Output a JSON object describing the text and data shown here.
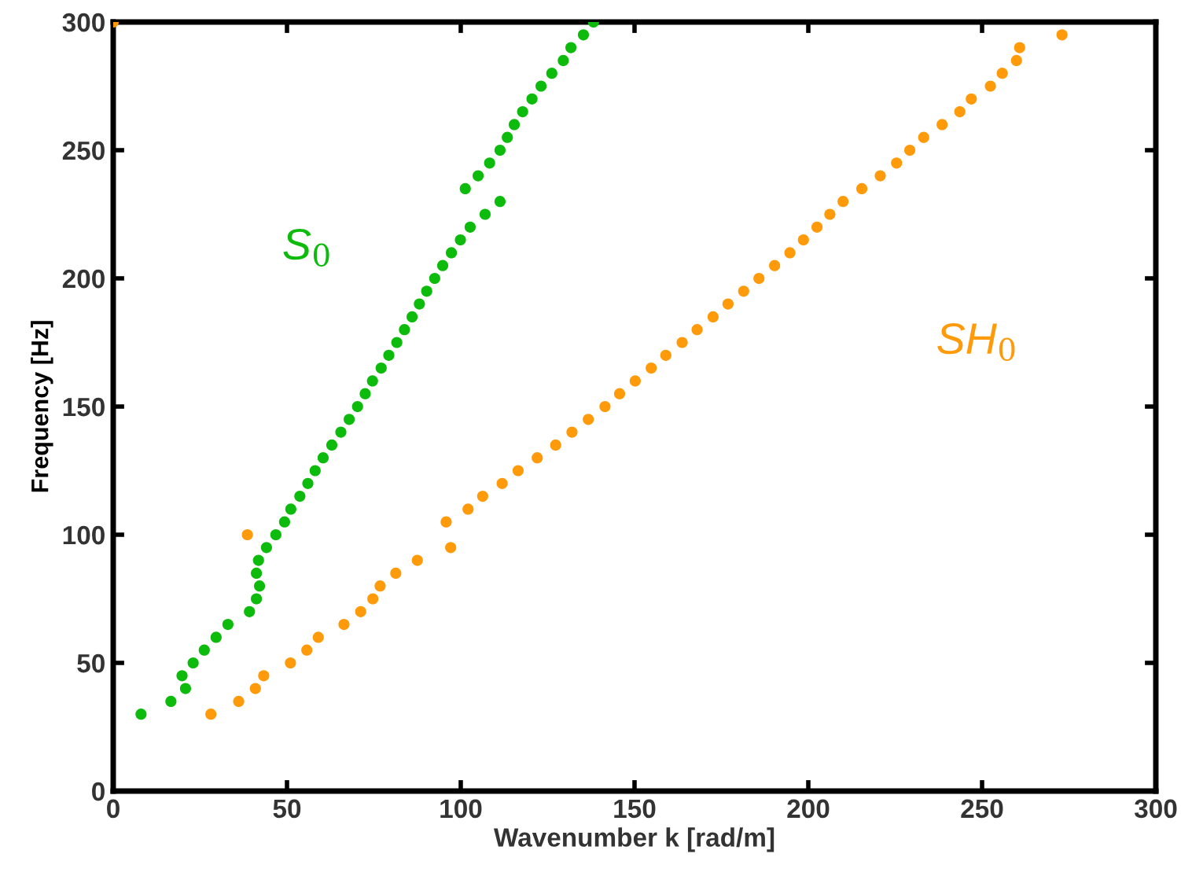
{
  "chart_data": {
    "type": "scatter",
    "xlabel": "Wavenumber k [rad/m]",
    "ylabel": "Frequency [Hz]",
    "xlim": [
      0,
      300
    ],
    "ylim": [
      0,
      300
    ],
    "xticks": [
      0,
      50,
      100,
      150,
      200,
      250,
      300
    ],
    "yticks": [
      0,
      50,
      100,
      150,
      200,
      250,
      300
    ],
    "grid": false,
    "legend": false,
    "marker": "circle",
    "series": [
      {
        "name": "S$_{0}$",
        "color": "#0cbb0c",
        "x": [
          8,
          16.6,
          19.8,
          20.8,
          23,
          26.2,
          29.6,
          33,
          39.2,
          41.2,
          42.1,
          41.2,
          41.8,
          44.1,
          46.8,
          49.3,
          51.1,
          53.7,
          56,
          58.1,
          60.4,
          62.9,
          65.5,
          67.9,
          70.3,
          72.5,
          74.6,
          77.1,
          79.3,
          81.6,
          83.8,
          86,
          88.1,
          90.2,
          92.5,
          94.8,
          97.3,
          99.9,
          102.7,
          107,
          111.3,
          101.3,
          105,
          108.3,
          111.3,
          113.4,
          115.4,
          117.8,
          120.5,
          123.1,
          126.2,
          129.5,
          131.7,
          135.3,
          138.2
        ],
        "values": [
          30,
          35,
          45,
          40,
          50,
          55,
          60,
          65,
          70,
          75,
          80,
          85,
          90,
          95,
          100,
          105,
          110,
          115,
          120,
          125,
          130,
          135,
          140,
          145,
          150,
          155,
          160,
          165,
          170,
          175,
          180,
          185,
          190,
          195,
          200,
          205,
          210,
          215,
          220,
          225,
          230,
          235,
          240,
          245,
          250,
          255,
          260,
          265,
          270,
          275,
          280,
          285,
          290,
          295,
          300
        ]
      },
      {
        "name": "SH$_{0}$",
        "color": "#ff9a0a",
        "x": [
          0,
          28.1,
          36.1,
          40.9,
          43.3,
          51,
          55.7,
          59,
          66.4,
          71.2,
          74.7,
          76.8,
          81.3,
          87.5,
          97.1,
          38.6,
          95.8,
          102.1,
          106.3,
          111.9,
          116.5,
          122,
          127.3,
          132,
          136.7,
          141.5,
          145.7,
          150.2,
          154.8,
          159,
          163.7,
          168,
          172.6,
          176.9,
          181.4,
          185.8,
          190.3,
          194.7,
          198.6,
          202.5,
          206.2,
          210,
          215.4,
          220.7,
          225.4,
          229.2,
          233.2,
          238.5,
          243.6,
          246.9,
          252.4,
          255.8,
          259.9,
          260.8,
          273
        ],
        "values": [
          300,
          30,
          35,
          40,
          45,
          50,
          55,
          60,
          65,
          70,
          75,
          80,
          85,
          90,
          95,
          100,
          105,
          110,
          115,
          120,
          125,
          130,
          135,
          140,
          145,
          150,
          155,
          160,
          165,
          170,
          175,
          180,
          185,
          190,
          195,
          200,
          205,
          210,
          215,
          220,
          225,
          230,
          235,
          240,
          245,
          250,
          255,
          260,
          265,
          270,
          275,
          280,
          285,
          290,
          295
        ]
      }
    ]
  }
}
